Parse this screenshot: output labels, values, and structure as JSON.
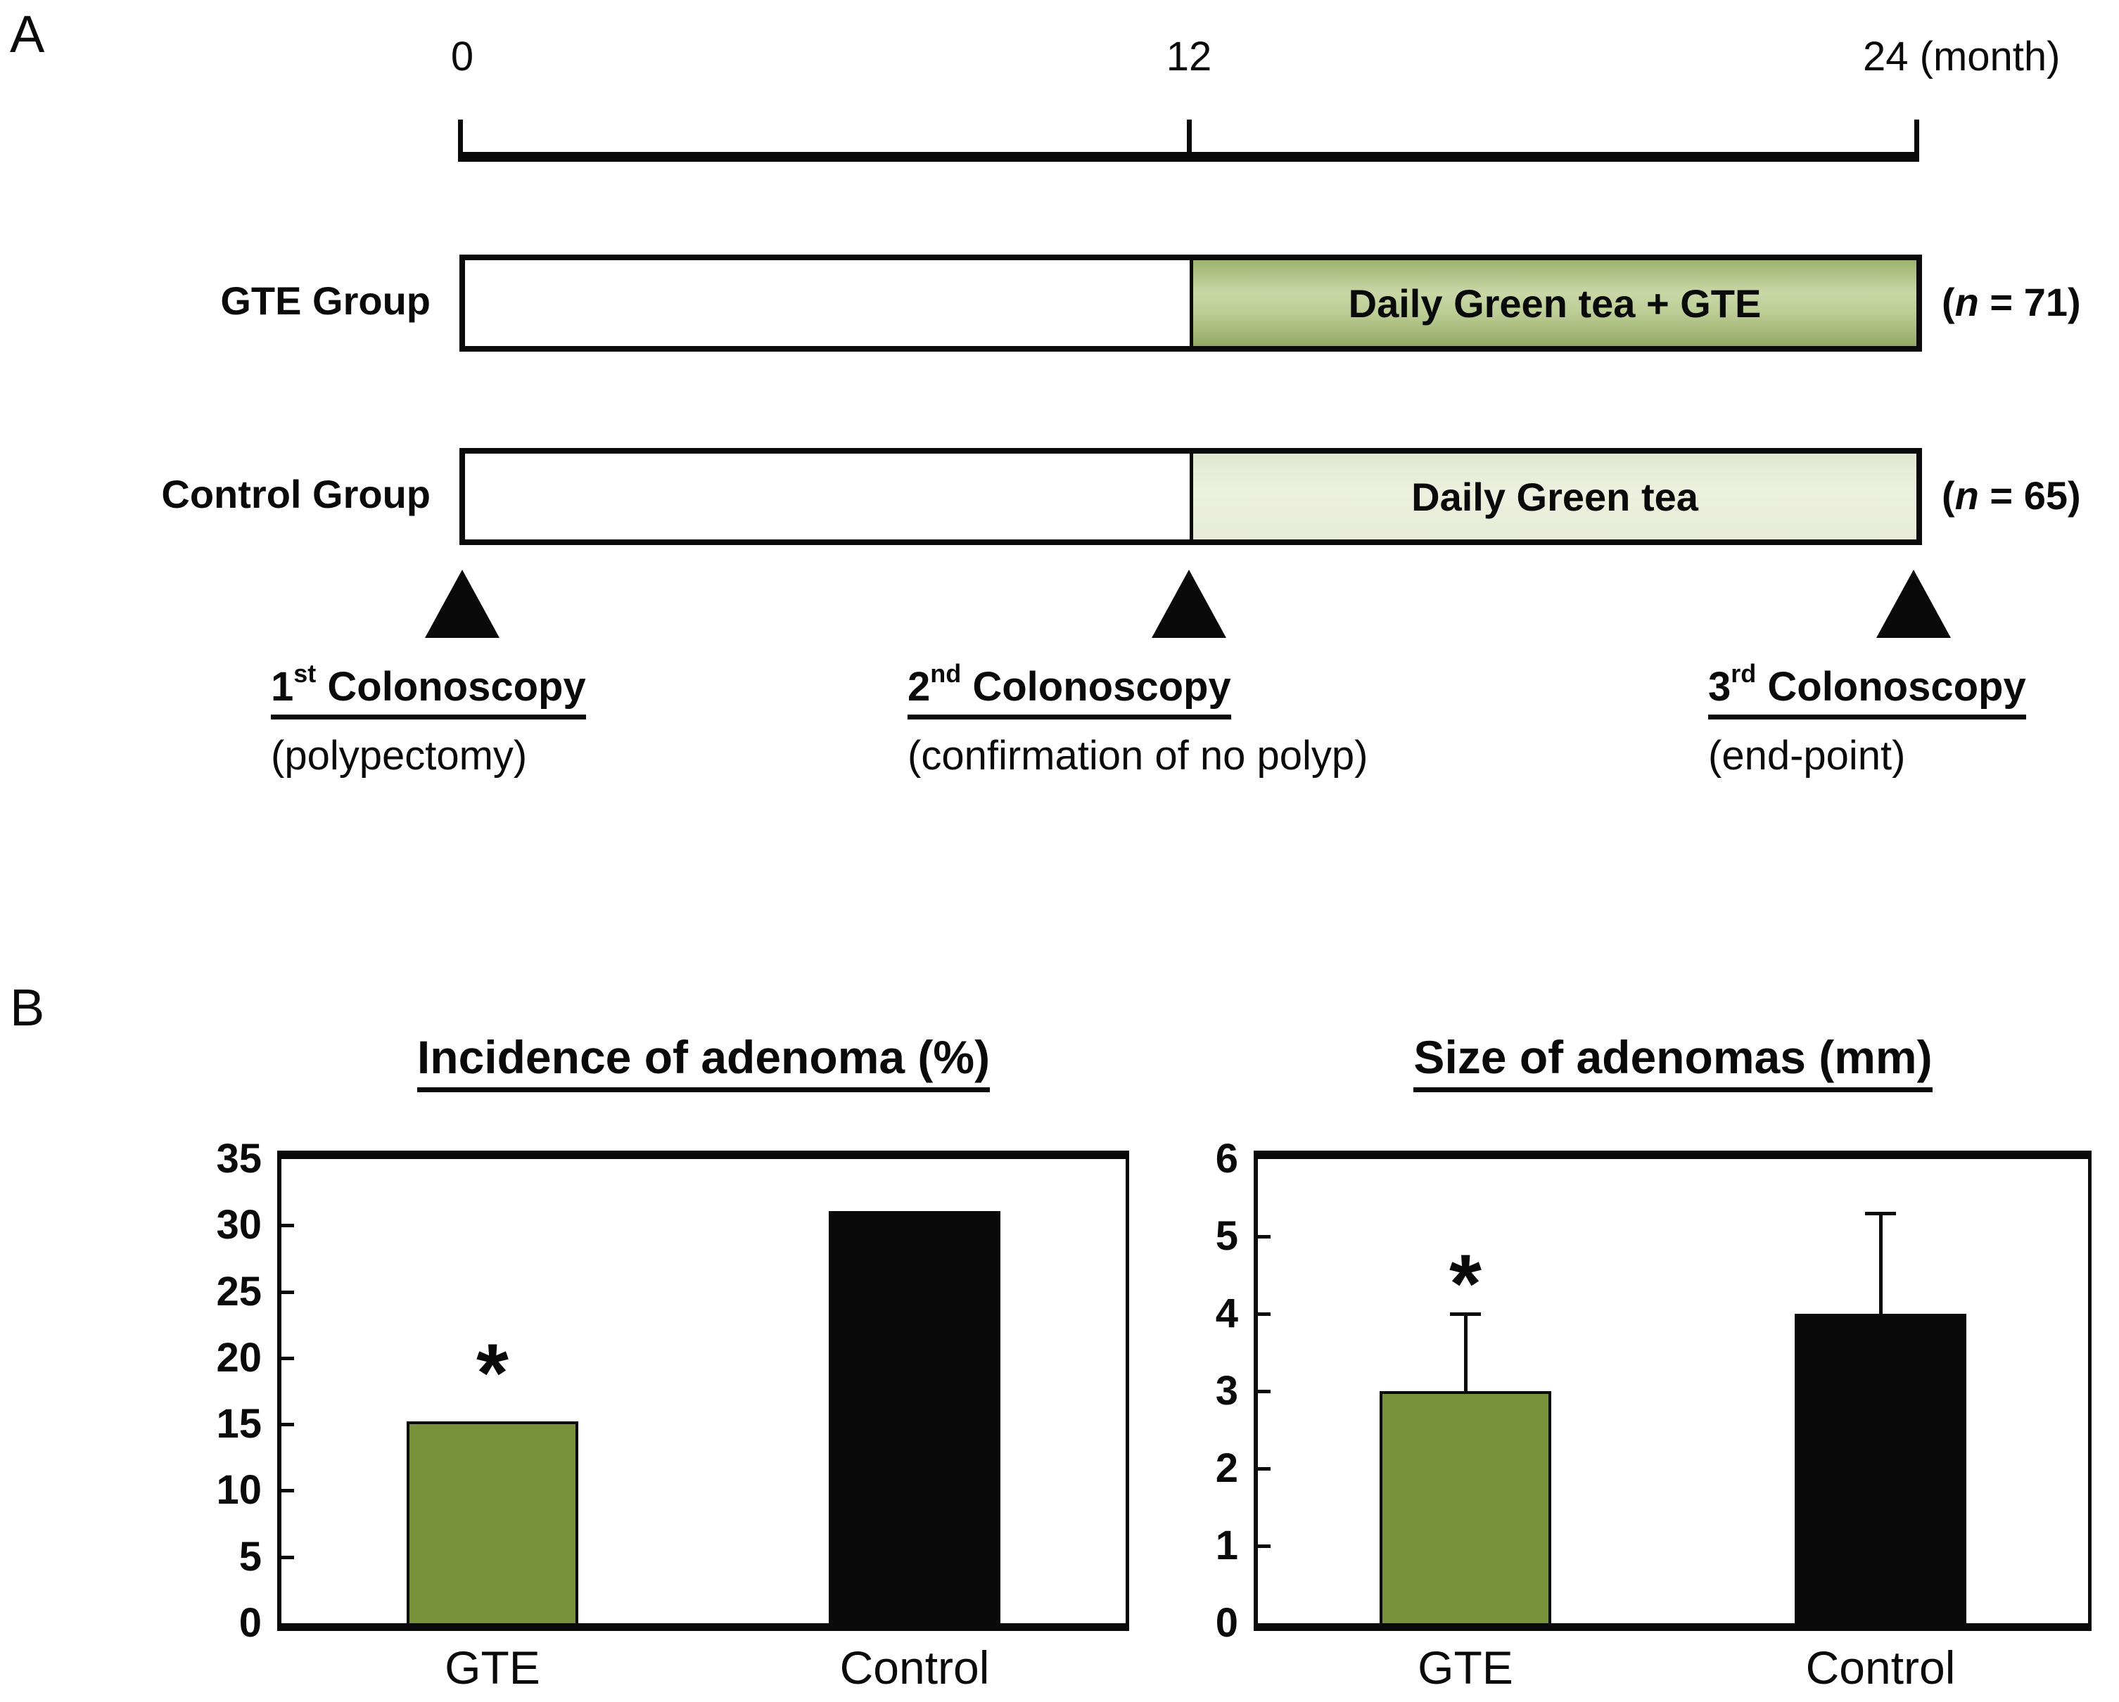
{
  "panelA": {
    "label": "A",
    "timeline": {
      "tick_0": "0",
      "tick_12": "12",
      "tick_24": "24 (month)"
    },
    "groups": [
      {
        "name": "GTE Group",
        "bar_label": "Daily Green tea + GTE",
        "n_open": "(",
        "n_var": "n",
        "n_rest": " = 71)"
      },
      {
        "name": "Control Group",
        "bar_label": "Daily Green tea",
        "n_open": "(",
        "n_var": "n",
        "n_rest": " = 65)"
      }
    ],
    "events": [
      {
        "num": "1",
        "sup": "st",
        "rest": " Colonoscopy",
        "subtitle": "(polypectomy)"
      },
      {
        "num": "2",
        "sup": "nd",
        "rest": " Colonoscopy",
        "subtitle": "(confirmation of no polyp)"
      },
      {
        "num": "3",
        "sup": "rd",
        "rest": " Colonoscopy",
        "subtitle": "(end-point)"
      }
    ]
  },
  "panelB": {
    "label": "B"
  },
  "chart_data": [
    {
      "type": "bar",
      "title": "Incidence of adenoma (%)",
      "categories": [
        "GTE",
        "Control"
      ],
      "values": [
        15.2,
        31.1
      ],
      "bar_colors": [
        "#78923c",
        "#0a0a0a"
      ],
      "bar_border": [
        "#0a0a0a",
        "#0a0a0a"
      ],
      "ylim": [
        0,
        35
      ],
      "yticks": [
        0,
        5,
        10,
        15,
        20,
        25,
        30,
        35
      ],
      "grid": false,
      "legend": "none",
      "annotations": [
        {
          "text": "*",
          "category_index": 0,
          "y": 19.8
        }
      ]
    },
    {
      "type": "bar",
      "title": "Size of adenomas (mm)",
      "categories": [
        "GTE",
        "Control"
      ],
      "values": [
        3.0,
        4.0
      ],
      "error_up": [
        1.0,
        1.3
      ],
      "bar_colors": [
        "#78923c",
        "#0a0a0a"
      ],
      "bar_border": [
        "#0a0a0a",
        "#0a0a0a"
      ],
      "ylim": [
        0,
        6
      ],
      "yticks": [
        0,
        1,
        2,
        3,
        4,
        5,
        6
      ],
      "grid": false,
      "legend": "none",
      "annotations": [
        {
          "text": "*",
          "category_index": 0,
          "y": 4.55
        }
      ]
    }
  ]
}
